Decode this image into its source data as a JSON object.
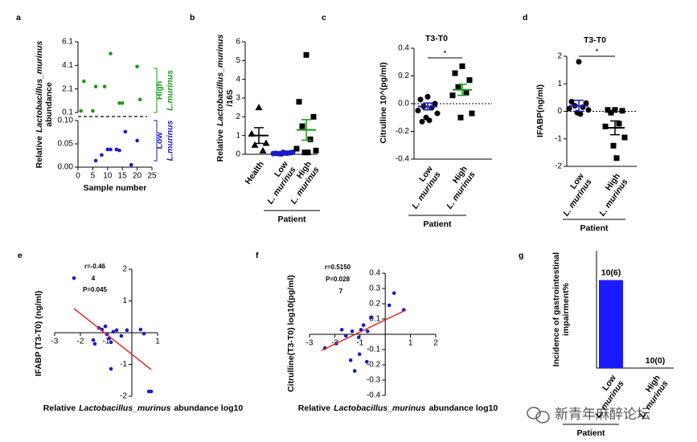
{
  "chart_data": [
    {
      "type": "scatter",
      "panel": "a",
      "broken_axis": true,
      "ylabel": [
        [
          {
            "text": "Relative"
          },
          {
            "text": "Lactobacillus_murinus",
            "italic": true
          }
        ],
        [
          {
            "text": "abundance"
          }
        ]
      ],
      "xlabel": [
        [
          {
            "text": "Sample number"
          }
        ]
      ],
      "xlim": [
        0,
        25
      ],
      "xticks": [
        0,
        5,
        10,
        15,
        20,
        25
      ],
      "ylim_upper": [
        0.1,
        6.1
      ],
      "yticks_upper": [
        0.1,
        2.1,
        4.1,
        6.1
      ],
      "ylim_lower": [
        0,
        0.1
      ],
      "yticks_lower": [
        {
          "value": 0,
          "label": "0.00"
        },
        {
          "value": 0.05,
          "label": "0.05"
        },
        {
          "value": 0.1,
          "label": "0.10"
        }
      ],
      "series": [
        {
          "label": [
            [
              {
                "text": "High"
              }
            ],
            [
              {
                "text": "L.murinus",
                "italic": true
              }
            ]
          ],
          "band": "upper",
          "color": "#1a9a1a",
          "x": [
            1,
            2,
            5,
            6,
            9,
            11,
            14,
            15,
            20,
            21
          ],
          "values": [
            0.24,
            2.75,
            0.24,
            2.3,
            2.3,
            5.1,
            0.9,
            0.9,
            4.0,
            1.2
          ]
        },
        {
          "label": [
            [
              {
                "text": "Low"
              }
            ],
            [
              {
                "text": "L.murinus",
                "italic": true
              }
            ]
          ],
          "band": "lower",
          "color": "#1a1ac8",
          "x": [
            6,
            8,
            10,
            11,
            13,
            14,
            16,
            18,
            20
          ],
          "values": [
            0.014,
            0.026,
            0.038,
            0.038,
            0.038,
            0.036,
            0.076,
            0.005,
            0.057
          ]
        }
      ]
    },
    {
      "type": "strip",
      "panel": "b",
      "ylabel": [
        [
          {
            "text": "Relative"
          },
          {
            "text": "Lactobacillus_murinus",
            "italic": true
          }
        ],
        [
          {
            "text": "/16S"
          }
        ]
      ],
      "ylim": [
        0,
        6
      ],
      "yticks": [
        0,
        1,
        2,
        3,
        4,
        5,
        6
      ],
      "group_label": "Patient",
      "groups": [
        {
          "category": [
            [
              {
                "text": "Health"
              }
            ]
          ],
          "marker": "triangle",
          "color": "#000000",
          "mean_color": "#000000",
          "values": [
            2.5,
            1.1,
            0.6,
            0.5,
            0.2
          ],
          "mean": 1.0,
          "sem": 0.42
        },
        {
          "category": [
            [
              {
                "text": "Low"
              }
            ],
            [
              {
                "text": "L. murinus",
                "italic": true
              }
            ]
          ],
          "marker": "circle",
          "color": "#1a1ac8",
          "mean_color": "#1a1ac8",
          "values": [
            0.1,
            0.05,
            0.08,
            0.03,
            0.06,
            0.04,
            0.1,
            0.02,
            0.07
          ],
          "mean": 0.06,
          "sem": 0.01
        },
        {
          "category": [
            [
              {
                "text": "High"
              }
            ],
            [
              {
                "text": "L. murinus",
                "italic": true
              }
            ]
          ],
          "marker": "square",
          "color": "#000000",
          "mean_color": "#1a9a1a",
          "values": [
            5.3,
            2.8,
            2.0,
            1.5,
            0.8,
            0.3,
            0.2,
            0.1,
            0.1
          ],
          "mean": 1.3,
          "sem": 0.55
        }
      ]
    },
    {
      "type": "strip",
      "panel": "c",
      "title": "T3-T0",
      "significance": "*",
      "reference_line": 0,
      "ylabel": [
        [
          {
            "text": "Citrulline 10^(pg/ml)"
          }
        ]
      ],
      "ylim": [
        -0.4,
        0.4
      ],
      "yticks": [
        -0.4,
        -0.2,
        {
          "value": 0,
          "label": "0.0"
        },
        0.2,
        0.4
      ],
      "group_label": "Patient",
      "groups": [
        {
          "category": [
            [
              {
                "text": "Low"
              }
            ],
            [
              {
                "text": "L. murinus",
                "italic": true
              }
            ]
          ],
          "marker": "circle",
          "color": "#000000",
          "mean_color": "#1a1ac8",
          "values": [
            0.05,
            0.03,
            0.0,
            -0.02,
            -0.03,
            -0.05,
            -0.07,
            -0.1,
            -0.12,
            -0.13
          ],
          "mean": -0.02,
          "sem": 0.025
        },
        {
          "category": [
            [
              {
                "text": "High"
              }
            ],
            [
              {
                "text": "L. murinus",
                "italic": true
              }
            ]
          ],
          "marker": "square",
          "color": "#000000",
          "mean_color": "#1a9a1a",
          "values": [
            0.27,
            0.22,
            0.17,
            0.12,
            0.08,
            0.06,
            -0.07,
            -0.1
          ],
          "mean": 0.1,
          "sem": 0.04
        }
      ]
    },
    {
      "type": "strip",
      "panel": "d",
      "title": "T3-T0",
      "significance": "*",
      "reference_line": 0,
      "ylabel": [
        [
          {
            "text": "IFABP(ng/ml)"
          }
        ]
      ],
      "ylim": [
        -2,
        2
      ],
      "yticks": [
        -2,
        -1,
        0,
        1,
        2
      ],
      "group_label": "Patient",
      "groups": [
        {
          "category": [
            [
              {
                "text": "Low"
              }
            ],
            [
              {
                "text": "L. murinus",
                "italic": true
              }
            ]
          ],
          "marker": "circle",
          "color": "#000000",
          "mean_color": "#1a1ac8",
          "values": [
            1.8,
            0.35,
            0.3,
            0.2,
            0.15,
            0.1,
            0.05,
            -0.05,
            -0.1
          ],
          "mean": 0.2,
          "sem": 0.2
        },
        {
          "category": [
            [
              {
                "text": "High"
              }
            ],
            [
              {
                "text": "L. murinus",
                "italic": true
              }
            ]
          ],
          "marker": "square",
          "color": "#000000",
          "mean_color": "#000000",
          "values": [
            0.05,
            0.05,
            0.02,
            -0.05,
            -0.45,
            -0.55,
            -0.95,
            -1.25,
            -1.7
          ],
          "mean": -0.6,
          "sem": 0.25
        }
      ]
    },
    {
      "type": "scatter",
      "panel": "e",
      "color": "#1a1ac8",
      "fit_color": "#e0201e",
      "annotations": [
        "r=-0.46",
        "4",
        "P=0.045"
      ],
      "ylabel": [
        [
          {
            "text": "IFABP (T3-T0) (ng/ml)"
          }
        ]
      ],
      "xlabel": [
        [
          {
            "text": "Relative"
          },
          {
            "text": "Lactobacillus_murinus",
            "italic": true
          },
          {
            "text": "abundance log10"
          }
        ]
      ],
      "xlim": [
        -3,
        1
      ],
      "xticks": [
        -3,
        -2,
        -1,
        1
      ],
      "ylim": [
        -2,
        2
      ],
      "yticks": [
        -2,
        -1,
        1,
        2
      ],
      "x": [
        -2.25,
        -1.5,
        -1.44,
        -1.28,
        -1.16,
        -1.03,
        -0.97,
        -0.88,
        -0.81,
        -0.72,
        -0.59,
        -0.41,
        -0.19,
        -0.81,
        0.34,
        0.47,
        0.66,
        0.75
      ],
      "values": [
        1.72,
        -0.23,
        -0.35,
        0.15,
        0.1,
        0.2,
        -0.05,
        -0.18,
        -0.3,
        0.03,
        0.08,
        -0.1,
        0.08,
        -1.14,
        0.1,
        -0.03,
        -1.85,
        -1.85
      ],
      "fit": {
        "x": [
          -2.25,
          0.75
        ],
        "y": [
          0.76,
          -1.16
        ]
      }
    },
    {
      "type": "scatter",
      "panel": "f",
      "color": "#1a1ac8",
      "fit_color": "#e0201e",
      "annotations": [
        "r=0.5150",
        "P=0.028",
        "7"
      ],
      "ylabel": [
        [
          {
            "text": "Citrulline(T3-T0) log10(pg/ml)"
          }
        ]
      ],
      "xlabel": [
        [
          {
            "text": "Relative"
          },
          {
            "text": "Lactobacillus_murinus",
            "italic": true
          },
          {
            "text": "abundance log10"
          }
        ]
      ],
      "xlim": [
        -3,
        2
      ],
      "xticks": [
        -3,
        -2,
        -1,
        1,
        2
      ],
      "ylim": [
        -0.4,
        0.4
      ],
      "yticks": [
        -0.4,
        -0.3,
        -0.2,
        -0.1,
        0.1,
        0.2,
        0.3,
        0.4
      ],
      "x": [
        0.35,
        0.16,
        0.73,
        -0.57,
        -0.86,
        -0.96,
        -0.7,
        -1.72,
        -1.56,
        -1.31,
        -1.05,
        -2.39,
        -1.94,
        -1.02,
        -1.37,
        -0.73,
        -1.21
      ],
      "values": [
        0.27,
        0.19,
        0.16,
        0.11,
        0.06,
        0.03,
        0.02,
        0.03,
        -0.01,
        0.02,
        -0.02,
        -0.09,
        -0.06,
        -0.13,
        -0.17,
        -0.18,
        -0.24
      ],
      "fit": {
        "x": [
          -2.52,
          0.83
        ],
        "y": [
          -0.105,
          0.16
        ]
      }
    },
    {
      "type": "bar",
      "panel": "g",
      "color": "#1a1aff",
      "ylabel": [
        [
          {
            "text": "Incidence of gastrointestinal"
          }
        ],
        [
          {
            "text": "impairment%"
          }
        ]
      ],
      "ylim": [
        0,
        80
      ],
      "group_label": "Patient",
      "categories": [
        [
          [
            {
              "text": "Low"
            }
          ],
          [
            {
              "text": "L. murinus",
              "italic": true
            }
          ]
        ],
        [
          [
            {
              "text": "High"
            }
          ],
          [
            {
              "text": "L. murinus",
              "italic": true
            }
          ]
        ]
      ],
      "values": [
        60,
        0
      ],
      "n_labels": [
        "10(6)",
        "10(0)"
      ]
    }
  ],
  "watermark": "新青年麻醉论坛"
}
